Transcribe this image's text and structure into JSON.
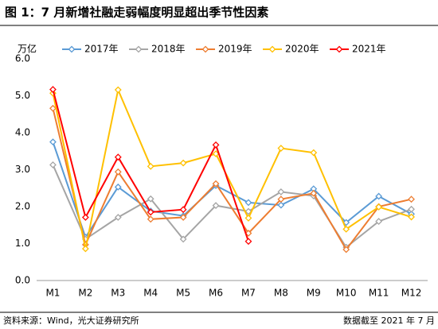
{
  "chart_data": {
    "type": "line",
    "title": "图 1：7 月新增社融走弱幅度明显超出季节性因素",
    "y_label": "万亿",
    "source": "资料来源：Wind，光大证券研究所",
    "note": "数据截至 2021 年 7 月",
    "categories": [
      "M1",
      "M2",
      "M3",
      "M4",
      "M5",
      "M6",
      "M7",
      "M8",
      "M9",
      "M10",
      "M11",
      "M12"
    ],
    "series": [
      {
        "name": "2017年",
        "color": "#5b9bd5",
        "values": [
          3.75,
          1.17,
          2.53,
          1.88,
          1.75,
          2.57,
          2.11,
          2.04,
          2.48,
          1.57,
          2.28,
          1.8
        ]
      },
      {
        "name": "2018年",
        "color": "#a5a5a5",
        "values": [
          3.13,
          1.12,
          1.71,
          2.21,
          1.12,
          2.03,
          1.87,
          2.4,
          2.29,
          0.9,
          1.6,
          1.93
        ]
      },
      {
        "name": "2019年",
        "color": "#ed7d31",
        "values": [
          4.66,
          0.97,
          2.94,
          1.66,
          1.71,
          2.62,
          1.28,
          2.2,
          2.36,
          0.84,
          2.0,
          2.2
        ]
      },
      {
        "name": "2020年",
        "color": "#ffc000",
        "values": [
          5.07,
          0.86,
          5.16,
          3.09,
          3.18,
          3.43,
          1.69,
          3.58,
          3.46,
          1.39,
          1.99,
          1.72
        ]
      },
      {
        "name": "2021年",
        "color": "#ff0000",
        "values": [
          5.17,
          1.71,
          3.34,
          1.85,
          1.92,
          3.67,
          1.06,
          null,
          null,
          null,
          null,
          null
        ]
      }
    ],
    "ylim": [
      0,
      6
    ],
    "yticks": [
      {
        "value": 0,
        "label": "0.0"
      },
      {
        "value": 1,
        "label": "1.0"
      },
      {
        "value": 2,
        "label": "2.0"
      },
      {
        "value": 3,
        "label": "3.0"
      },
      {
        "value": 4,
        "label": "4.0"
      },
      {
        "value": 5,
        "label": "5.0"
      },
      {
        "value": 6,
        "label": "6.0"
      }
    ],
    "grid": false
  }
}
